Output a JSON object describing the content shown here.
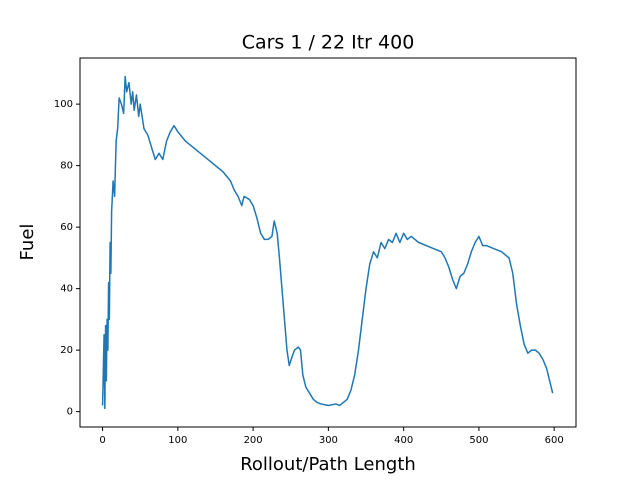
{
  "chart_data": {
    "type": "line",
    "title": "Cars 1 / 22 Itr 400",
    "x_label": "Rollout/Path Length",
    "y_label": "Fuel",
    "color": "#1f77b4",
    "x": [
      0,
      2,
      3,
      4,
      5,
      6,
      7,
      8,
      9,
      10,
      11,
      12,
      14,
      16,
      18,
      20,
      22,
      25,
      28,
      30,
      32,
      35,
      38,
      40,
      42,
      45,
      48,
      50,
      55,
      60,
      65,
      70,
      75,
      80,
      85,
      90,
      95,
      100,
      110,
      120,
      130,
      140,
      150,
      160,
      170,
      175,
      180,
      185,
      188,
      195,
      200,
      205,
      210,
      215,
      220,
      225,
      228,
      232,
      235,
      240,
      245,
      248,
      252,
      255,
      260,
      263,
      266,
      270,
      275,
      280,
      285,
      290,
      300,
      310,
      315,
      320,
      325,
      330,
      335,
      340,
      345,
      350,
      355,
      360,
      365,
      370,
      375,
      380,
      385,
      390,
      395,
      400,
      405,
      410,
      420,
      430,
      440,
      450,
      455,
      460,
      465,
      470,
      475,
      480,
      485,
      490,
      495,
      500,
      505,
      510,
      520,
      530,
      540,
      545,
      550,
      555,
      560,
      565,
      570,
      575,
      580,
      585,
      590,
      595,
      598
    ],
    "values": [
      2,
      25,
      1,
      28,
      10,
      30,
      20,
      42,
      30,
      55,
      45,
      65,
      75,
      70,
      88,
      92,
      102,
      100,
      97,
      109,
      104,
      107,
      100,
      104,
      98,
      103,
      96,
      100,
      92,
      90,
      86,
      82,
      84,
      82,
      88,
      91,
      93,
      91,
      88,
      86,
      84,
      82,
      80,
      78,
      75,
      72,
      70,
      67,
      70,
      69,
      67,
      63,
      58,
      56,
      56,
      57,
      62,
      58,
      50,
      35,
      20,
      15,
      18,
      20,
      21,
      20,
      12,
      8,
      6,
      4,
      3,
      2.5,
      2,
      2.5,
      2,
      3,
      4,
      7,
      12,
      20,
      30,
      40,
      48,
      52,
      50,
      55,
      53,
      56,
      55,
      58,
      55,
      58,
      56,
      57,
      55,
      54,
      53,
      52,
      50,
      47,
      43,
      40,
      44,
      45,
      48,
      52,
      55,
      57,
      54,
      54,
      53,
      52,
      50,
      45,
      35,
      28,
      22,
      19,
      20,
      20,
      19,
      17,
      14,
      9,
      6
    ],
    "xlim": [
      -30,
      629
    ],
    "ylim": [
      -5,
      115
    ],
    "xticks": [
      0,
      100,
      200,
      300,
      400,
      500,
      600
    ],
    "yticks": [
      0,
      20,
      40,
      60,
      80,
      100
    ]
  }
}
